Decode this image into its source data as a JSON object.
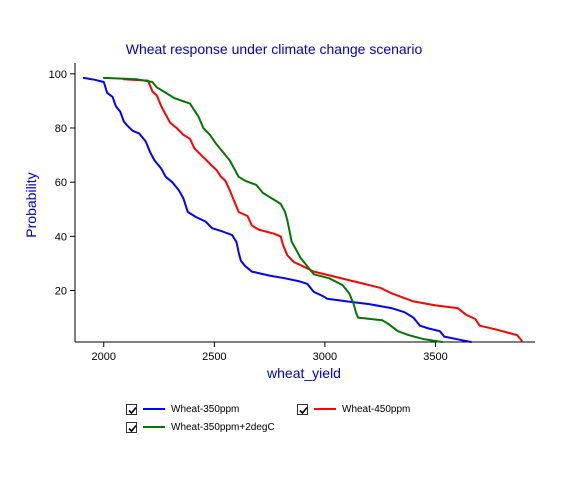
{
  "chart_data": {
    "type": "line",
    "title": "Wheat response under climate change scenario",
    "xlabel": "wheat_yield",
    "ylabel": "Probability",
    "xlim": [
      1870,
      3950
    ],
    "ylim": [
      1,
      104
    ],
    "x_ticks": [
      2000,
      2500,
      3000,
      3500
    ],
    "y_ticks": [
      20,
      40,
      60,
      80,
      100
    ],
    "x_tick_labels": [
      "2000",
      "2500",
      "3000",
      "3500"
    ],
    "y_tick_labels": [
      "20",
      "40",
      "60",
      "80",
      "100"
    ],
    "grid": false,
    "legend_position": "bottom",
    "colors": {
      "title": "#0000cc",
      "axis_label": "#0000cc",
      "axis": "#000000"
    },
    "series": [
      {
        "name": "Wheat-350ppm",
        "color": "#0000ff",
        "checked": true,
        "points": [
          [
            1910,
            98.5
          ],
          [
            1960,
            97.8
          ],
          [
            2000,
            97.0
          ],
          [
            2015,
            93.0
          ],
          [
            2040,
            91.5
          ],
          [
            2055,
            88.0
          ],
          [
            2075,
            86.0
          ],
          [
            2090,
            82.5
          ],
          [
            2105,
            81.0
          ],
          [
            2130,
            79.0
          ],
          [
            2160,
            78.0
          ],
          [
            2190,
            75.0
          ],
          [
            2210,
            71.0
          ],
          [
            2230,
            68.0
          ],
          [
            2260,
            65.0
          ],
          [
            2280,
            62.0
          ],
          [
            2310,
            60.0
          ],
          [
            2340,
            57.0
          ],
          [
            2360,
            54.0
          ],
          [
            2380,
            49.0
          ],
          [
            2420,
            47.0
          ],
          [
            2460,
            45.5
          ],
          [
            2490,
            43.0
          ],
          [
            2530,
            42.0
          ],
          [
            2580,
            40.5
          ],
          [
            2600,
            38.0
          ],
          [
            2610,
            34.0
          ],
          [
            2620,
            31.0
          ],
          [
            2640,
            29.0
          ],
          [
            2670,
            27.0
          ],
          [
            2750,
            25.5
          ],
          [
            2820,
            24.5
          ],
          [
            2880,
            23.5
          ],
          [
            2920,
            22.5
          ],
          [
            2950,
            19.5
          ],
          [
            2990,
            18.0
          ],
          [
            3010,
            17.0
          ],
          [
            3100,
            16.0
          ],
          [
            3200,
            15.0
          ],
          [
            3300,
            13.5
          ],
          [
            3360,
            12.0
          ],
          [
            3400,
            10.0
          ],
          [
            3430,
            7.0
          ],
          [
            3470,
            6.0
          ],
          [
            3520,
            5.0
          ],
          [
            3540,
            3.0
          ],
          [
            3600,
            2.0
          ],
          [
            3660,
            1.0
          ]
        ]
      },
      {
        "name": "Wheat-450ppm",
        "color": "#ff0000",
        "checked": true,
        "points": [
          [
            2090,
            98.0
          ],
          [
            2200,
            97.5
          ],
          [
            2220,
            93.5
          ],
          [
            2240,
            92.0
          ],
          [
            2260,
            88.0
          ],
          [
            2280,
            85.0
          ],
          [
            2300,
            82.0
          ],
          [
            2330,
            80.0
          ],
          [
            2360,
            77.5
          ],
          [
            2390,
            76.0
          ],
          [
            2410,
            72.5
          ],
          [
            2440,
            70.0
          ],
          [
            2460,
            68.5
          ],
          [
            2490,
            66.0
          ],
          [
            2510,
            64.5
          ],
          [
            2530,
            62.0
          ],
          [
            2550,
            60.5
          ],
          [
            2570,
            57.0
          ],
          [
            2590,
            53.0
          ],
          [
            2610,
            49.0
          ],
          [
            2650,
            47.5
          ],
          [
            2670,
            44.0
          ],
          [
            2700,
            42.5
          ],
          [
            2770,
            41.0
          ],
          [
            2800,
            40.0
          ],
          [
            2810,
            37.0
          ],
          [
            2830,
            33.0
          ],
          [
            2860,
            30.5
          ],
          [
            2900,
            29.0
          ],
          [
            2950,
            27.0
          ],
          [
            3050,
            25.0
          ],
          [
            3150,
            23.0
          ],
          [
            3250,
            21.0
          ],
          [
            3300,
            19.0
          ],
          [
            3400,
            16.0
          ],
          [
            3500,
            14.5
          ],
          [
            3600,
            13.5
          ],
          [
            3640,
            11.0
          ],
          [
            3680,
            9.5
          ],
          [
            3700,
            7.0
          ],
          [
            3780,
            5.5
          ],
          [
            3870,
            3.5
          ],
          [
            3890,
            1.5
          ]
        ]
      },
      {
        "name": "Wheat-350ppm+2degC",
        "color": "#007700",
        "checked": true,
        "points": [
          [
            2000,
            98.5
          ],
          [
            2150,
            98.0
          ],
          [
            2220,
            97.0
          ],
          [
            2240,
            95.0
          ],
          [
            2270,
            93.5
          ],
          [
            2320,
            91.0
          ],
          [
            2390,
            89.0
          ],
          [
            2410,
            86.5
          ],
          [
            2430,
            84.0
          ],
          [
            2450,
            80.0
          ],
          [
            2480,
            77.5
          ],
          [
            2510,
            74.0
          ],
          [
            2540,
            71.0
          ],
          [
            2570,
            68.0
          ],
          [
            2590,
            65.0
          ],
          [
            2610,
            62.0
          ],
          [
            2640,
            60.5
          ],
          [
            2690,
            59.0
          ],
          [
            2720,
            56.0
          ],
          [
            2760,
            54.0
          ],
          [
            2800,
            52.0
          ],
          [
            2820,
            49.0
          ],
          [
            2830,
            46.0
          ],
          [
            2840,
            42.0
          ],
          [
            2850,
            38.0
          ],
          [
            2870,
            35.0
          ],
          [
            2890,
            32.0
          ],
          [
            2910,
            30.0
          ],
          [
            2930,
            28.0
          ],
          [
            2950,
            26.0
          ],
          [
            3020,
            24.5
          ],
          [
            3080,
            22.0
          ],
          [
            3110,
            19.0
          ],
          [
            3130,
            15.0
          ],
          [
            3140,
            12.0
          ],
          [
            3150,
            10.0
          ],
          [
            3260,
            9.0
          ],
          [
            3290,
            7.5
          ],
          [
            3330,
            5.0
          ],
          [
            3380,
            3.5
          ],
          [
            3450,
            2.0
          ],
          [
            3530,
            1.0
          ]
        ]
      }
    ]
  }
}
